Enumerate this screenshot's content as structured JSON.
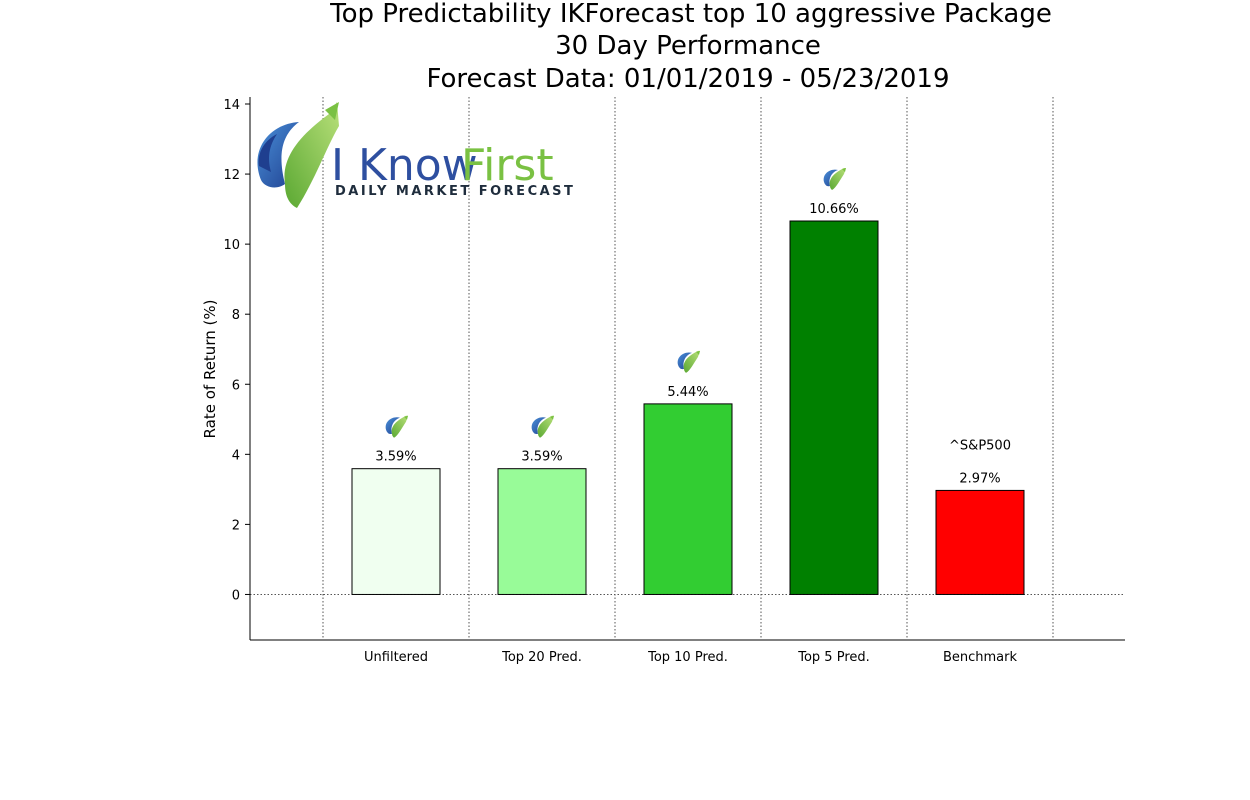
{
  "title_lines": [
    "Top Predictability IKForecast top 10 aggressive Package",
    "30 Day Performance",
    "Forecast Data: 01/01/2019 - 05/23/2019"
  ],
  "logo": {
    "brand_part1": "I Know",
    "brand_part2": "First",
    "tagline": "Daily Market Forecast",
    "colors": {
      "blue": "#2e4fa0",
      "green": "#7ac143"
    }
  },
  "chart_data": {
    "type": "bar",
    "title": "Top Predictability IKForecast top 10 aggressive Package 30 Day Performance Forecast Data: 01/01/2019 - 05/23/2019",
    "xlabel": "",
    "ylabel": "Rate of Return (%)",
    "ylim": [
      -1.3,
      14.2
    ],
    "yticks": [
      0,
      2,
      4,
      6,
      8,
      10,
      12,
      14
    ],
    "categories": [
      "Unfiltered",
      "Top 20 Pred.",
      "Top 10 Pred.",
      "Top 5 Pred.",
      "Benchmark"
    ],
    "values": [
      3.59,
      3.59,
      5.44,
      10.66,
      2.97
    ],
    "value_labels": [
      "3.59%",
      "3.59%",
      "5.44%",
      "10.66%",
      "2.97%"
    ],
    "bar_colors": [
      "#f0fff0",
      "#98fb98",
      "#32cd32",
      "#008000",
      "#ff0000"
    ],
    "has_icon": [
      true,
      true,
      true,
      true,
      false
    ],
    "benchmark_annotation": "^S&P500",
    "grid": "vertical dotted lines between categories, dotted zero line",
    "legend": "none"
  }
}
